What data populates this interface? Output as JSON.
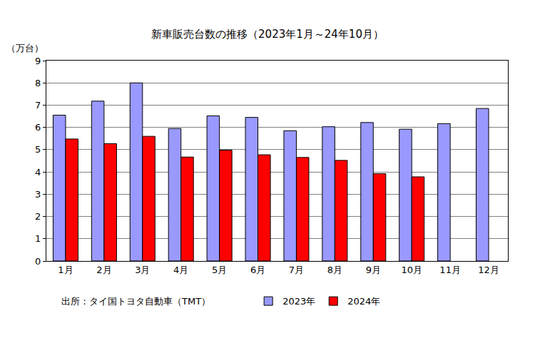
{
  "chart_data": {
    "type": "bar",
    "title": "新車販売台数の推移（2023年1月～24年10月）",
    "ylabel": "（万台）",
    "source": "出所：タイ国トヨタ自動車（TMT）",
    "categories": [
      "1月",
      "2月",
      "3月",
      "4月",
      "5月",
      "6月",
      "7月",
      "8月",
      "9月",
      "10月",
      "11月",
      "12月"
    ],
    "series": [
      {
        "name": "2023年",
        "color": "#9999ff",
        "values": [
          6.55,
          7.18,
          8.0,
          5.95,
          6.52,
          6.45,
          5.85,
          6.03,
          6.22,
          5.92,
          6.17,
          6.85
        ]
      },
      {
        "name": "2024年",
        "color": "#ff0000",
        "values": [
          5.48,
          5.27,
          5.6,
          4.67,
          4.98,
          4.77,
          4.65,
          4.52,
          3.92,
          3.78,
          null,
          null
        ]
      }
    ],
    "ylim": [
      0,
      9
    ],
    "yticks": [
      0,
      1,
      2,
      3,
      4,
      5,
      6,
      7,
      8,
      9
    ],
    "grid": true,
    "legend": "bottom"
  }
}
